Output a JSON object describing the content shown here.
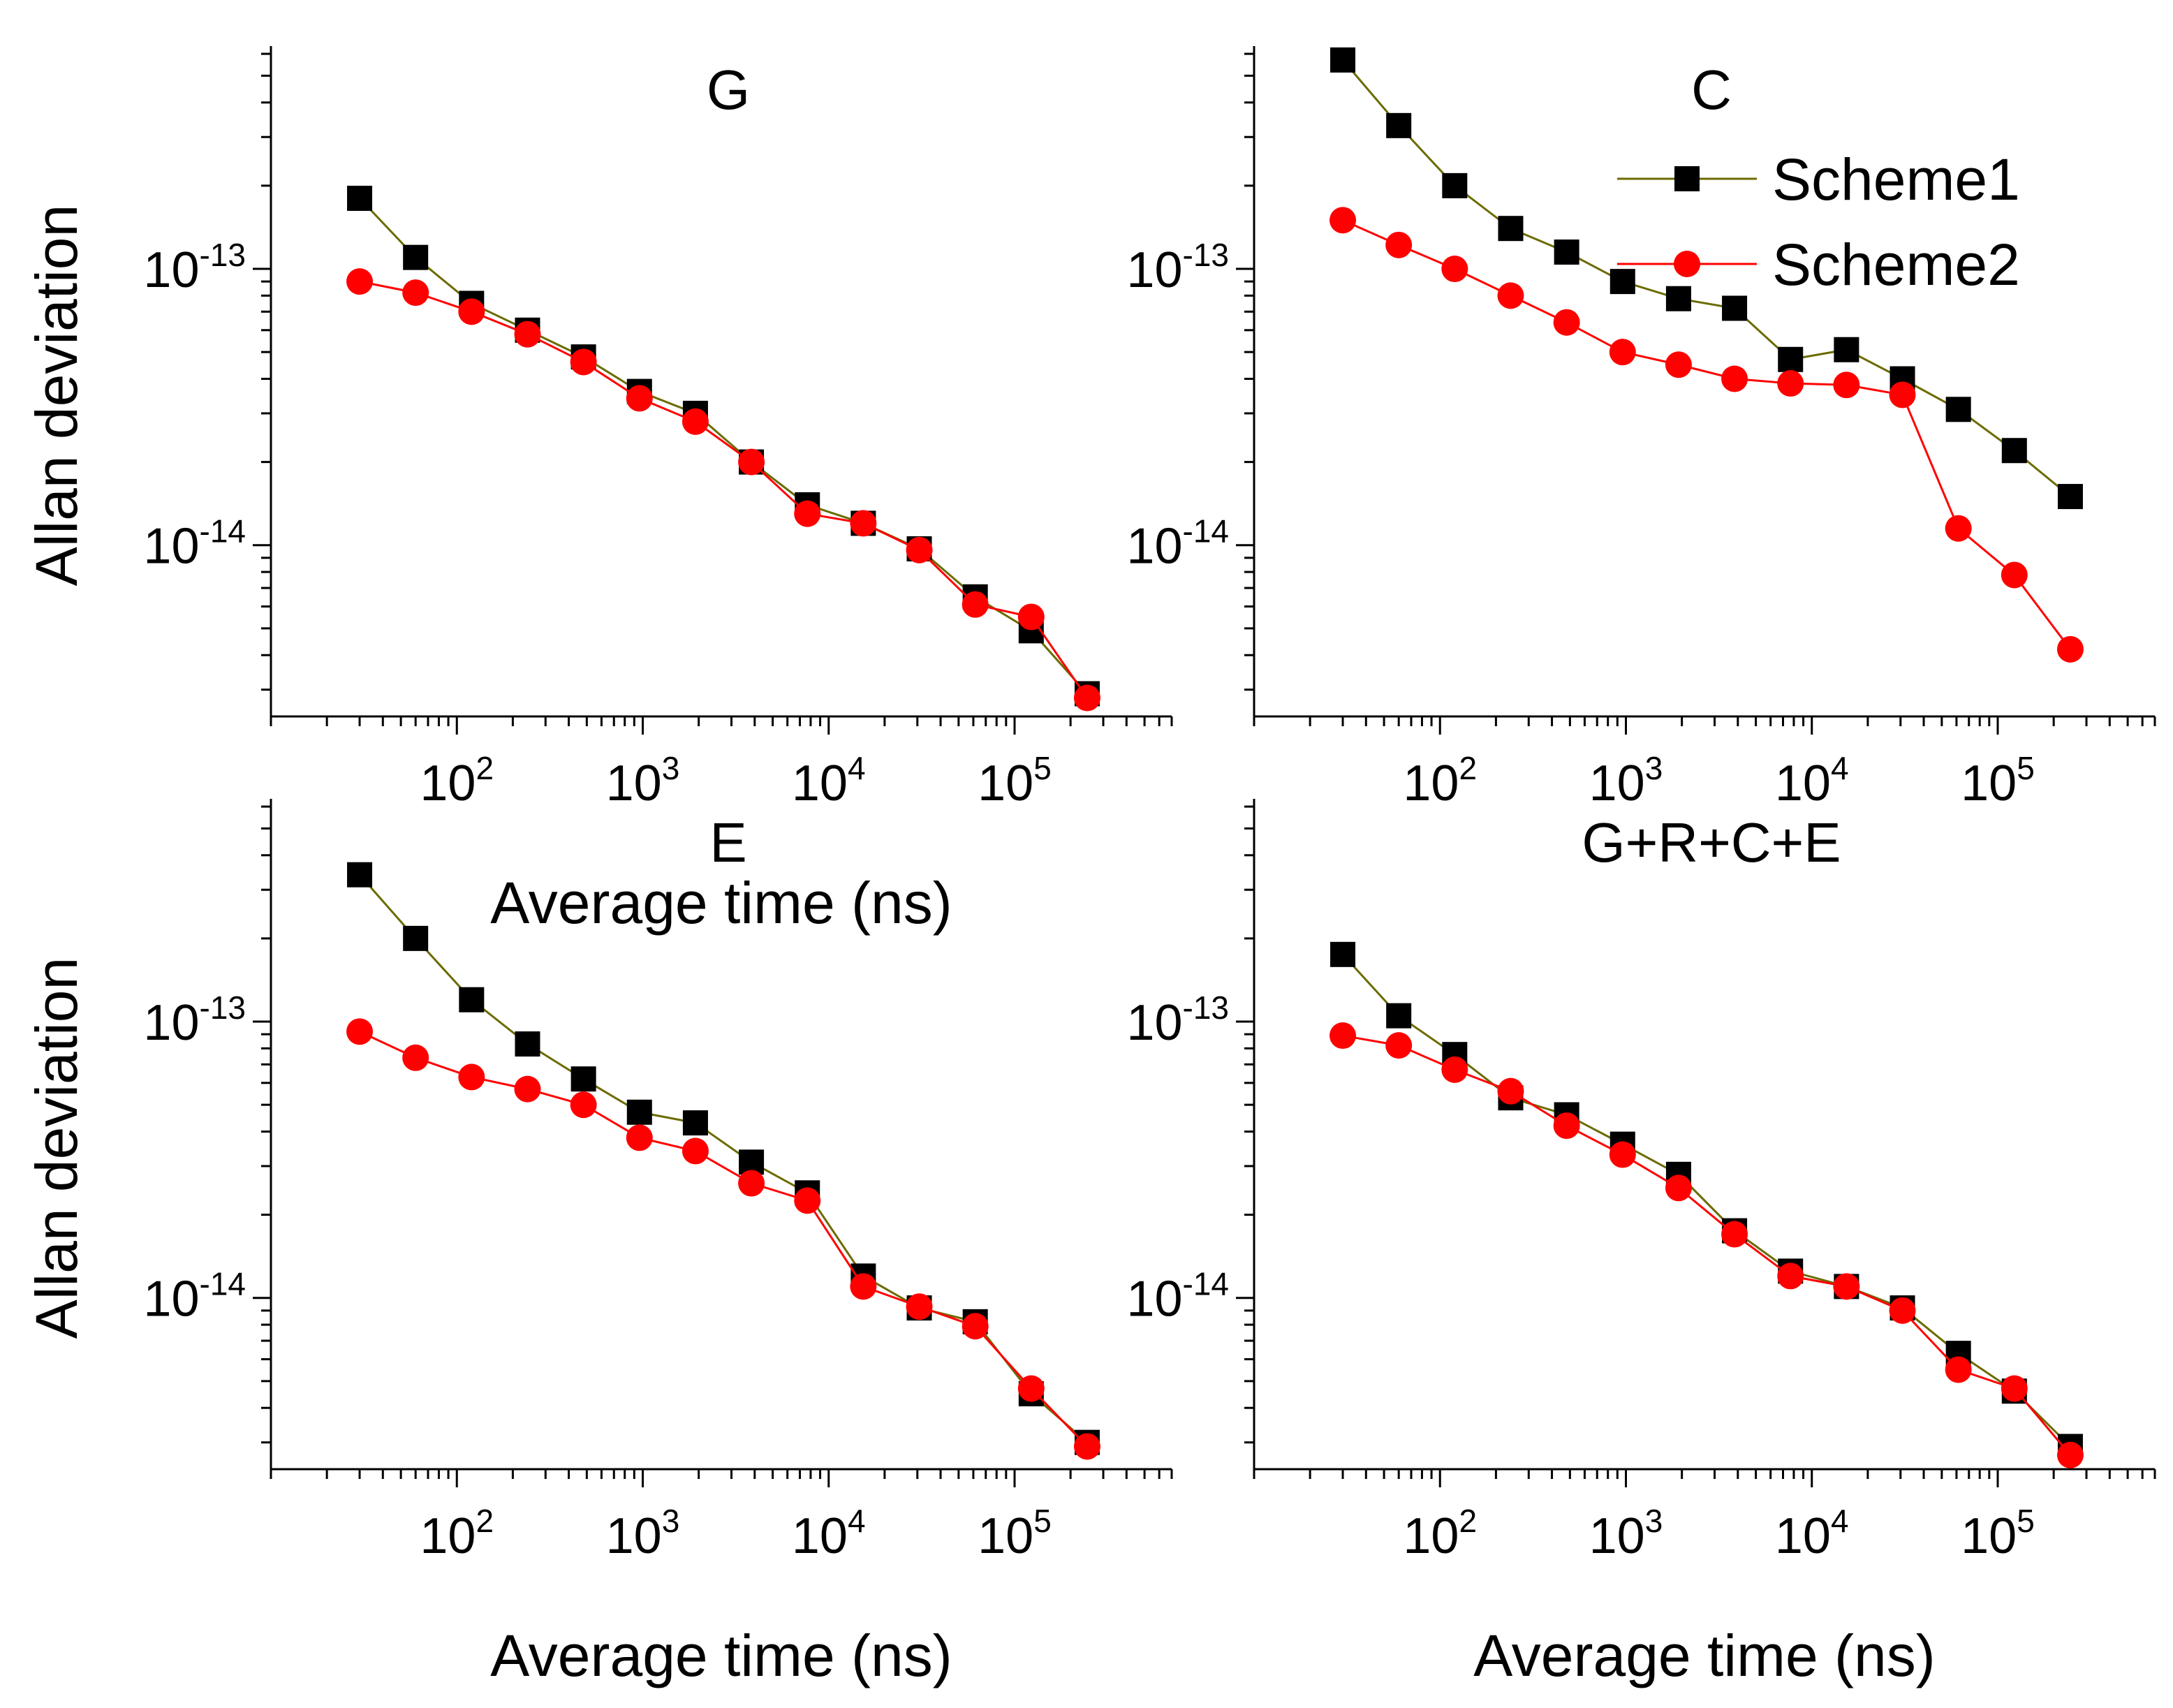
{
  "figure": {
    "legend": [
      {
        "label": "Scheme1",
        "color": "#6b6b00",
        "marker": "square",
        "marker_color": "#000000"
      },
      {
        "label": "Scheme2",
        "color": "#ff0000",
        "marker": "circle",
        "marker_color": "#ff0000"
      }
    ],
    "xlabel": "Average time (ns)",
    "ylabel": "Allan deviation",
    "x_tick_labels": [
      {
        "base": "10",
        "exp": "2",
        "value": 100
      },
      {
        "base": "10",
        "exp": "3",
        "value": 1000
      },
      {
        "base": "10",
        "exp": "4",
        "value": 10000
      },
      {
        "base": "10",
        "exp": "5",
        "value": 100000
      }
    ],
    "y_tick_labels": [
      {
        "base": "10",
        "exp": "-13",
        "value": 1e-13
      },
      {
        "base": "10",
        "exp": "-14",
        "value": 1e-14
      }
    ]
  },
  "chart_data": [
    {
      "type": "line",
      "title": "G",
      "xlabel": "Average time (ns)",
      "ylabel": "Allan deviation",
      "x_scale": "log",
      "y_scale": "log",
      "xlim": [
        10,
        700000
      ],
      "ylim": [
        2.4e-15,
        6.4e-13
      ],
      "grid": false,
      "legend": null,
      "x": [
        30,
        60,
        120,
        240,
        480,
        960,
        1920,
        3840,
        7680,
        15360,
        30720,
        61440,
        122880,
        245760
      ],
      "series": [
        {
          "name": "Scheme1",
          "values": [
            1.8e-13,
            1.1e-13,
            7.5e-14,
            6e-14,
            4.8e-14,
            3.6e-14,
            3e-14,
            2e-14,
            1.4e-14,
            1.2e-14,
            9.7e-15,
            6.5e-15,
            4.9e-15,
            2.9e-15
          ]
        },
        {
          "name": "Scheme2",
          "values": [
            9e-14,
            8.2e-14,
            7e-14,
            5.8e-14,
            4.6e-14,
            3.4e-14,
            2.8e-14,
            2e-14,
            1.3e-14,
            1.2e-14,
            9.6e-15,
            6.1e-15,
            5.5e-15,
            2.8e-15
          ]
        }
      ]
    },
    {
      "type": "line",
      "title": "C",
      "xlabel": "",
      "ylabel": "",
      "x_scale": "log",
      "y_scale": "log",
      "xlim": [
        10,
        700000
      ],
      "ylim": [
        2.4e-15,
        6.4e-13
      ],
      "grid": false,
      "legend": "top-right",
      "x": [
        30,
        60,
        120,
        240,
        480,
        960,
        1920,
        3840,
        7680,
        15360,
        30720,
        61440,
        122880,
        245760
      ],
      "series": [
        {
          "name": "Scheme1",
          "values": [
            5.7e-13,
            3.3e-13,
            2e-13,
            1.4e-13,
            1.15e-13,
            9e-14,
            7.8e-14,
            7.2e-14,
            4.7e-14,
            5.1e-14,
            4e-14,
            3.1e-14,
            2.2e-14,
            1.5e-14
          ]
        },
        {
          "name": "Scheme2",
          "values": [
            1.5e-13,
            1.22e-13,
            1e-13,
            8e-14,
            6.4e-14,
            5e-14,
            4.5e-14,
            4e-14,
            3.85e-14,
            3.8e-14,
            3.5e-14,
            1.15e-14,
            7.8e-15,
            4.2e-15
          ]
        }
      ]
    },
    {
      "type": "line",
      "title": "E",
      "xlabel": "Average time (ns)",
      "ylabel": "Allan deviation",
      "x_scale": "log",
      "y_scale": "log",
      "xlim": [
        10,
        700000
      ],
      "ylim": [
        2.4e-15,
        6.4e-13
      ],
      "grid": false,
      "legend": null,
      "x": [
        30,
        60,
        120,
        240,
        480,
        960,
        1920,
        3840,
        7680,
        15360,
        30720,
        61440,
        122880,
        245760
      ],
      "series": [
        {
          "name": "Scheme1",
          "values": [
            3.4e-13,
            2e-13,
            1.2e-13,
            8.3e-14,
            6.2e-14,
            4.7e-14,
            4.3e-14,
            3.1e-14,
            2.4e-14,
            1.2e-14,
            9.2e-15,
            8.2e-15,
            4.5e-15,
            3e-15
          ]
        },
        {
          "name": "Scheme2",
          "values": [
            9.2e-14,
            7.4e-14,
            6.3e-14,
            5.7e-14,
            5e-14,
            3.8e-14,
            3.4e-14,
            2.6e-14,
            2.25e-14,
            1.1e-14,
            9.3e-15,
            7.9e-15,
            4.7e-15,
            2.9e-15
          ]
        }
      ]
    },
    {
      "type": "line",
      "title": "G+R+C+E",
      "xlabel": "Average time (ns)",
      "ylabel": "",
      "x_scale": "log",
      "y_scale": "log",
      "xlim": [
        10,
        700000
      ],
      "ylim": [
        2.4e-15,
        6.4e-13
      ],
      "grid": false,
      "legend": null,
      "x": [
        30,
        60,
        120,
        240,
        480,
        960,
        1920,
        3840,
        7680,
        15360,
        30720,
        61440,
        122880,
        245760
      ],
      "series": [
        {
          "name": "Scheme1",
          "values": [
            1.75e-13,
            1.05e-13,
            7.6e-14,
            5.3e-14,
            4.6e-14,
            3.6e-14,
            2.8e-14,
            1.75e-14,
            1.25e-14,
            1.1e-14,
            9.2e-15,
            6.3e-15,
            4.6e-15,
            2.9e-15
          ]
        },
        {
          "name": "Scheme2",
          "values": [
            8.9e-14,
            8.2e-14,
            6.7e-14,
            5.6e-14,
            4.2e-14,
            3.3e-14,
            2.5e-14,
            1.7e-14,
            1.2e-14,
            1.1e-14,
            9e-15,
            5.5e-15,
            4.7e-15,
            2.7e-15
          ]
        }
      ]
    }
  ]
}
